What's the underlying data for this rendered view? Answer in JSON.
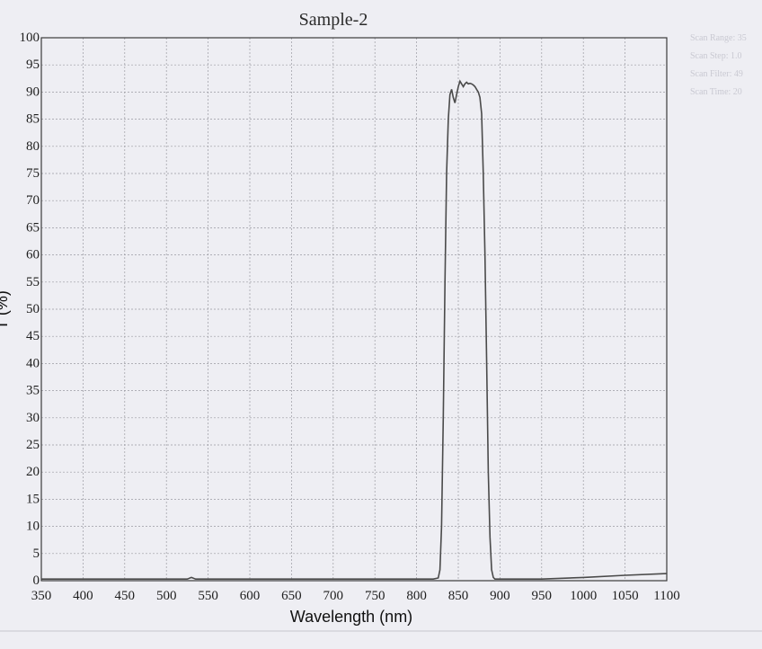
{
  "chart_data": {
    "type": "line",
    "title": "Sample-2",
    "xlabel": "Wavelength (nm)",
    "ylabel": "T (%)",
    "xlim": [
      350,
      1100
    ],
    "ylim": [
      0,
      100
    ],
    "x_ticks": [
      350,
      400,
      450,
      500,
      550,
      600,
      650,
      700,
      750,
      800,
      850,
      900,
      950,
      1000,
      1050,
      1100
    ],
    "y_ticks": [
      0,
      5,
      10,
      15,
      20,
      25,
      30,
      35,
      40,
      45,
      50,
      55,
      60,
      65,
      70,
      75,
      80,
      85,
      90,
      95,
      100
    ],
    "grid": true,
    "legend": "none",
    "series": [
      {
        "x": [
          350,
          400,
          450,
          500,
          525,
          530,
          535,
          550,
          600,
          650,
          700,
          750,
          800,
          820,
          826,
          828,
          830,
          832,
          834,
          836,
          838,
          840,
          842,
          844,
          846,
          848,
          850,
          852,
          854,
          856,
          858,
          860,
          862,
          864,
          866,
          868,
          870,
          872,
          874,
          876,
          878,
          880,
          882,
          884,
          886,
          888,
          890,
          892,
          894,
          896,
          898,
          900,
          950,
          1000,
          1050,
          1100
        ],
        "y": [
          0.3,
          0.3,
          0.3,
          0.3,
          0.3,
          0.6,
          0.3,
          0.3,
          0.3,
          0.3,
          0.3,
          0.3,
          0.3,
          0.3,
          0.5,
          2,
          10,
          30,
          55,
          75,
          85,
          89.5,
          90.5,
          89,
          88,
          89.5,
          91,
          92,
          91.5,
          91,
          91.5,
          91.8,
          91.5,
          91.6,
          91.5,
          91.3,
          91,
          90.5,
          90,
          89,
          86,
          75,
          60,
          40,
          20,
          8,
          2,
          0.6,
          0.3,
          0.3,
          0.3,
          0.3,
          0.3,
          0.6,
          1.0,
          1.3
        ],
        "color": "#4a4a4a"
      }
    ],
    "side_notes": [
      "Scan Range: 35",
      "Scan Step:  1.0",
      "Scan Filter: 49",
      "Scan Time:  20"
    ]
  }
}
